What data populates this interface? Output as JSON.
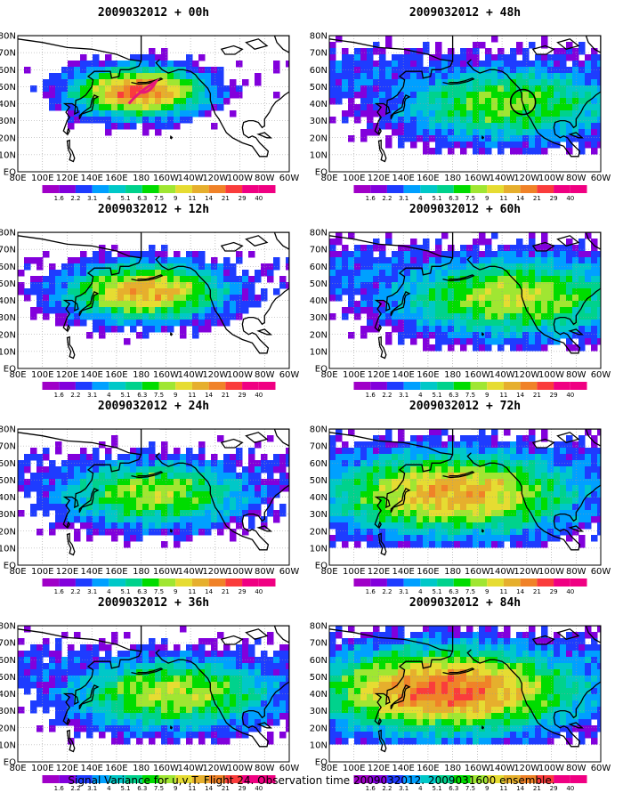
{
  "caption": "Signal Variance for u,v,T. Flight 24. Observation time 2009032012. 2009031600 ensemble.",
  "chart_data": {
    "type": "heatmap",
    "map_region": "North Pacific, North America and East Asia",
    "grid": true,
    "x_tick_labels": [
      "80E",
      "100E",
      "120E",
      "140E",
      "160E",
      "180",
      "160W",
      "140W",
      "120W",
      "100W",
      "80W",
      "60W"
    ],
    "y_tick_labels": [
      "EQ",
      "10N",
      "20N",
      "30N",
      "40N",
      "50N",
      "60N",
      "70N",
      "80N"
    ],
    "colorbar": {
      "levels": [
        "1.6",
        "2.2",
        "3.1",
        "4",
        "5.1",
        "6.3",
        "7.5",
        "9",
        "11",
        "14",
        "21",
        "29",
        "40"
      ],
      "colors": [
        "#a000c8",
        "#8200dc",
        "#1e3cff",
        "#00a0ff",
        "#00c8c8",
        "#00d28c",
        "#00dc00",
        "#a0e632",
        "#e6dc32",
        "#e6af2d",
        "#f08228",
        "#fa3c3c",
        "#f00082"
      ]
    },
    "panels": [
      {
        "title": "2009032012 + 00h",
        "column": 0,
        "row": 0,
        "spread": 0.3,
        "intensity": 0.85,
        "center_lon": 178,
        "center_lat": 47,
        "flight_track": true,
        "circle_marker": false
      },
      {
        "title": "2009032012 + 12h",
        "column": 0,
        "row": 1,
        "spread": 0.45,
        "intensity": 0.75,
        "center_lon": 183,
        "center_lat": 45,
        "flight_track": false,
        "circle_marker": false
      },
      {
        "title": "2009032012 + 24h",
        "column": 0,
        "row": 2,
        "spread": 0.6,
        "intensity": 0.6,
        "center_lon": 190,
        "center_lat": 42,
        "flight_track": false,
        "circle_marker": false
      },
      {
        "title": "2009032012 + 36h",
        "column": 0,
        "row": 3,
        "spread": 0.7,
        "intensity": 0.62,
        "center_lon": 205,
        "center_lat": 40,
        "flight_track": false,
        "circle_marker": false
      },
      {
        "title": "2009032012 + 48h",
        "column": 1,
        "row": 0,
        "spread": 0.8,
        "intensity": 0.55,
        "center_lon": 225,
        "center_lat": 40,
        "flight_track": false,
        "circle_marker": true
      },
      {
        "title": "2009032012 + 60h",
        "column": 1,
        "row": 1,
        "spread": 0.85,
        "intensity": 0.62,
        "center_lon": 230,
        "center_lat": 42,
        "flight_track": false,
        "circle_marker": false
      },
      {
        "title": "2009032012 + 72h",
        "column": 1,
        "row": 2,
        "spread": 0.9,
        "intensity": 0.75,
        "center_lon": 180,
        "center_lat": 42,
        "flight_track": false,
        "circle_marker": false
      },
      {
        "title": "2009032012 + 84h",
        "column": 1,
        "row": 3,
        "spread": 0.95,
        "intensity": 0.85,
        "center_lon": 175,
        "center_lat": 42,
        "flight_track": false,
        "circle_marker": false
      }
    ]
  }
}
